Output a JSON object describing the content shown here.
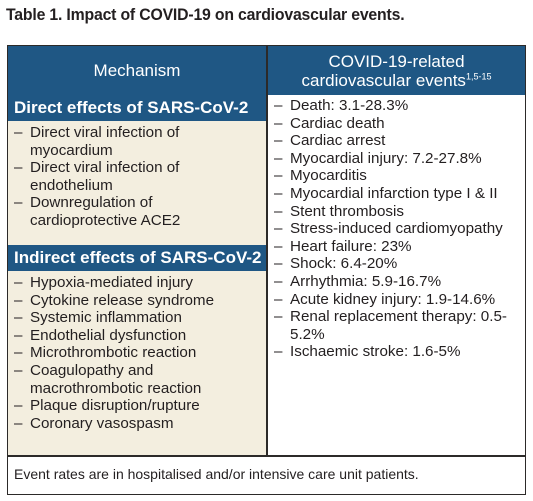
{
  "title": "Table 1. Impact of COVID-19 on cardiovascular events.",
  "header": {
    "mechanism": "Mechanism",
    "events_line1": "COVID-19-related",
    "events_line2": "cardiovascular events",
    "events_refs": "1,5-15"
  },
  "direct": {
    "heading": "Direct effects of SARS-CoV-2",
    "items": [
      "Direct viral infection of myocardium",
      "Direct viral infection of endothelium",
      "Downregulation of cardioprotective ACE2"
    ]
  },
  "indirect": {
    "heading": "Indirect effects of SARS-CoV-2",
    "items": [
      "Hypoxia-mediated injury",
      "Cytokine release syndrome",
      "Systemic inflammation",
      "Endothelial dysfunction",
      "Microthrombotic reaction",
      "Coagulopathy and macrothrombotic reaction",
      "Plaque disruption/rupture",
      "Coronary vasospasm"
    ]
  },
  "events": {
    "items": [
      "Death: 3.1-28.3%",
      "Cardiac death",
      "Cardiac arrest",
      "Myocardial injury: 7.2-27.8%",
      "Myocarditis",
      "Myocardial infarction type I & II",
      "Stent thrombosis",
      "Stress-induced cardiomyopathy",
      "Heart failure: 23%",
      "Shock: 6.4-20%",
      "Arrhythmia: 5.9-16.7%",
      "Acute kidney injury: 1.9-14.6%",
      "Renal replacement therapy: 0.5-5.2%",
      "Ischaemic stroke: 1.6-5%"
    ]
  },
  "footnote": "Event rates are in hospitalised and/or intensive care unit patients.",
  "colors": {
    "header_bg": "#1f5784",
    "section_bg": "#f3eedf",
    "border": "#2c2a29"
  }
}
